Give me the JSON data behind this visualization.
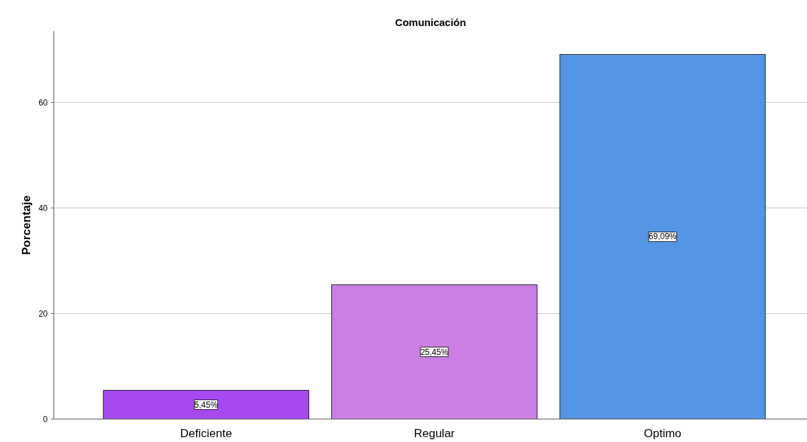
{
  "chart_data": {
    "type": "bar",
    "title": "Comunicación",
    "ylabel": "Porcentaje",
    "categories": [
      "Deficiente",
      "Regular",
      "Optimo"
    ],
    "values": [
      5.45,
      25.45,
      69.09
    ],
    "colors": [
      "#a64af0",
      "#cb7fe5",
      "#5595e5"
    ],
    "value_labels": [
      "5,45%",
      "25,45%",
      "69,09%"
    ],
    "ylim": [
      0,
      73.5
    ],
    "yticks": [
      0,
      20,
      40,
      60
    ],
    "grid": "y"
  }
}
